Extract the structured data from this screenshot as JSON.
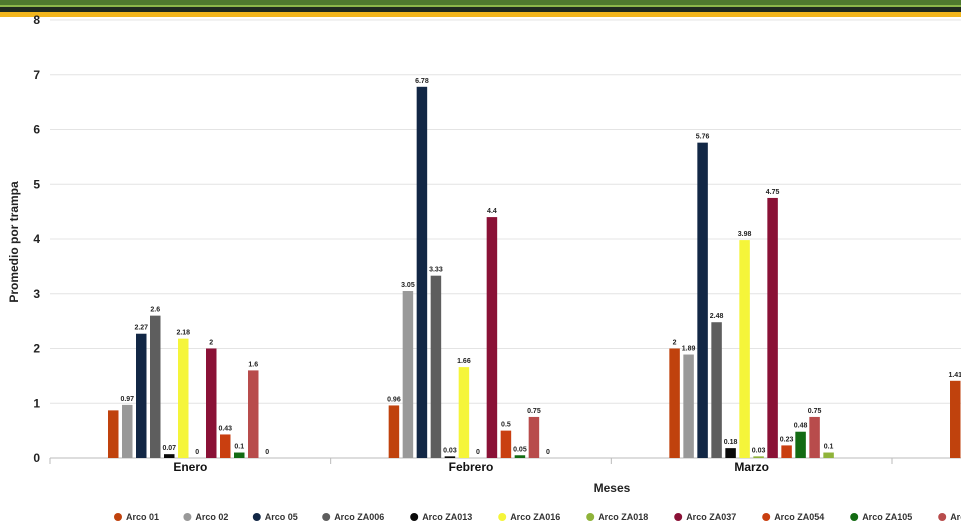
{
  "chart_data": {
    "type": "bar",
    "xlabel": "Meses",
    "ylabel": "Promedio por trampa",
    "ylim": [
      0,
      8
    ],
    "y_ticks": [
      0,
      1,
      2,
      3,
      4,
      5,
      6,
      7,
      8
    ],
    "grid": true,
    "legend_position": "bottom",
    "categories": [
      "Enero",
      "Febrero",
      "Marzo",
      ""
    ],
    "series": [
      {
        "name": "Arco 01",
        "color": "#c0420d",
        "values": [
          0.87,
          0.96,
          2,
          1.41
        ]
      },
      {
        "name": "Arco 02",
        "color": "#999999",
        "values": [
          0.97,
          3.05,
          1.89,
          null
        ]
      },
      {
        "name": "Arco 05",
        "color": "#122745",
        "values": [
          2.27,
          6.78,
          5.76,
          null
        ]
      },
      {
        "name": "Arco ZA006",
        "color": "#5e5e5e",
        "values": [
          2.6,
          3.33,
          2.48,
          null
        ]
      },
      {
        "name": "Arco ZA013",
        "color": "#0a0a0a",
        "values": [
          0.07,
          0.03,
          0.18,
          null
        ]
      },
      {
        "name": "Arco ZA016",
        "color": "#f5f53a",
        "values": [
          2.18,
          1.66,
          3.98,
          null
        ]
      },
      {
        "name": "Arco ZA018",
        "color": "#8fb33a",
        "values": [
          0,
          0,
          0.03,
          null
        ]
      },
      {
        "name": "Arco ZA037",
        "color": "#8a1136",
        "values": [
          2,
          4.4,
          4.75,
          null
        ]
      },
      {
        "name": "Arco ZA054",
        "color": "#c93f10",
        "values": [
          0.43,
          0.5,
          0.23,
          null
        ]
      },
      {
        "name": "Arco ZA105",
        "color": "#136b13",
        "values": [
          0.1,
          0.05,
          0.48,
          null
        ]
      },
      {
        "name": "Arco ZA",
        "color": "#b84c4c",
        "values": [
          1.6,
          0.75,
          0.75,
          null
        ]
      },
      {
        "name": "",
        "color": "#8fb33a",
        "values": [
          0,
          0,
          0.1,
          null
        ]
      }
    ],
    "data_labels": [
      [
        "",
        "0.97",
        "2.27",
        "2.6",
        "0.07",
        "2.18",
        "0",
        "2",
        "0.43",
        "0.1",
        "1.6",
        "0"
      ],
      [
        "0.96",
        "3.05",
        "6.78",
        "3.33",
        "0.03",
        "1.66",
        "0",
        "4.4",
        "0.5",
        "0.05",
        "0.75",
        "0"
      ],
      [
        "2",
        "1.89",
        "5.76",
        "2.48",
        "0.18",
        "3.98",
        "0.03",
        "4.75",
        "0.23",
        "0.48",
        "0.75",
        "0.1"
      ],
      [
        "1.41",
        "",
        "",
        "",
        "",
        "",
        "",
        "",
        "",
        "",
        "",
        ""
      ]
    ]
  }
}
